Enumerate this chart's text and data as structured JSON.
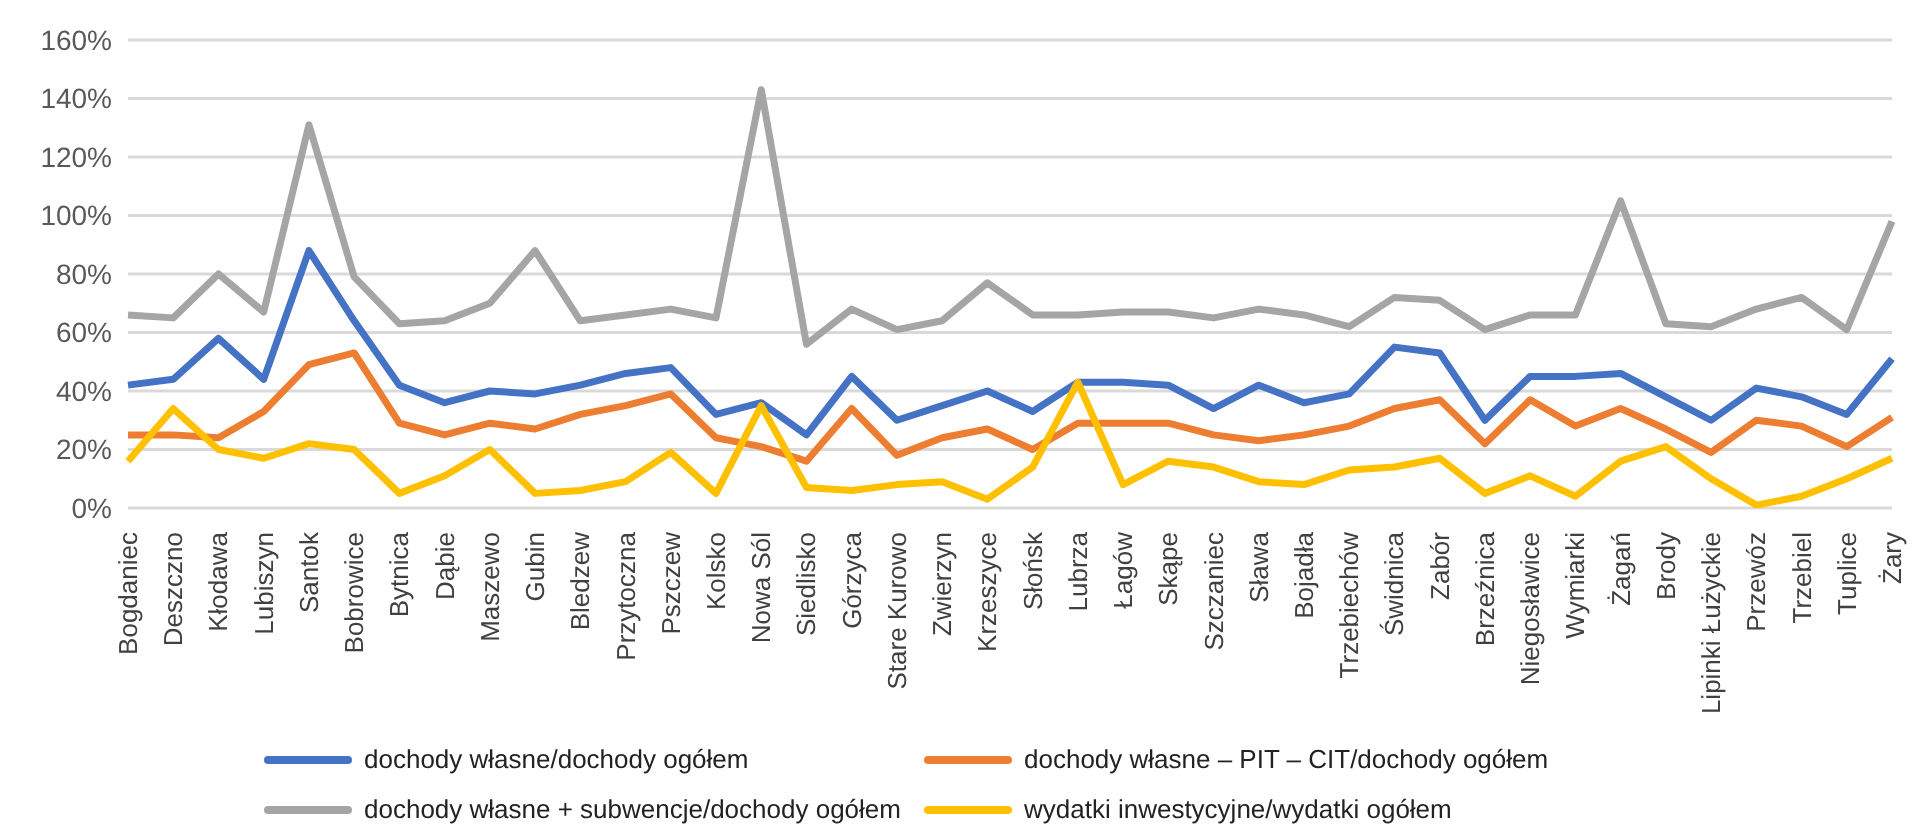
{
  "chart_data": {
    "type": "line",
    "categories": [
      "Bogdaniec",
      "Deszczno",
      "Kłodawa",
      "Lubiszyn",
      "Santok",
      "Bobrowice",
      "Bytnica",
      "Dąbie",
      "Maszewo",
      "Gubin",
      "Bledzew",
      "Przytoczna",
      "Pszczew",
      "Kolsko",
      "Nowa Sól",
      "Siedlisko",
      "Górzyca",
      "Stare Kurowo",
      "Zwierzyn",
      "Krzeszyce",
      "Słońsk",
      "Lubrza",
      "Łagów",
      "Skąpe",
      "Szczaniec",
      "Sława",
      "Bojadła",
      "Trzebiechów",
      "Świdnica",
      "Zabór",
      "Brzeźnica",
      "Niegosławice",
      "Wymiarki",
      "Żagań",
      "Brody",
      "Lipinki Łużyckie",
      "Przewóz",
      "Trzebiel",
      "Tuplice",
      "Żary"
    ],
    "series": [
      {
        "name": "dochody własne/dochody ogółem",
        "color": "#4472c4",
        "values": [
          42,
          44,
          58,
          44,
          88,
          64,
          42,
          36,
          40,
          39,
          42,
          46,
          48,
          32,
          36,
          25,
          45,
          30,
          35,
          40,
          33,
          43,
          43,
          42,
          34,
          42,
          36,
          39,
          55,
          53,
          30,
          45,
          45,
          46,
          38,
          30,
          41,
          38,
          32,
          51
        ]
      },
      {
        "name": "dochody własne – PIT – CIT/dochody ogółem",
        "color": "#ed7d31",
        "values": [
          25,
          25,
          24,
          33,
          49,
          53,
          29,
          25,
          29,
          27,
          32,
          35,
          39,
          24,
          21,
          16,
          34,
          18,
          24,
          27,
          20,
          29,
          29,
          29,
          25,
          23,
          25,
          28,
          34,
          37,
          22,
          37,
          28,
          34,
          27,
          19,
          30,
          28,
          21,
          31
        ]
      },
      {
        "name": "dochody własne + subwencje/dochody ogółem",
        "color": "#a5a5a5",
        "values": [
          66,
          65,
          80,
          67,
          131,
          79,
          63,
          64,
          70,
          88,
          64,
          66,
          68,
          65,
          143,
          56,
          68,
          61,
          64,
          77,
          66,
          66,
          67,
          67,
          65,
          68,
          66,
          62,
          72,
          71,
          61,
          66,
          66,
          105,
          63,
          62,
          68,
          72,
          61,
          98
        ]
      },
      {
        "name": "wydatki inwestycyjne/wydatki ogółem",
        "color": "#ffc000",
        "values": [
          16,
          34,
          20,
          17,
          22,
          20,
          5,
          11,
          20,
          5,
          6,
          9,
          19,
          5,
          35,
          7,
          6,
          8,
          9,
          3,
          14,
          43,
          8,
          16,
          14,
          9,
          8,
          13,
          14,
          17,
          5,
          11,
          4,
          16,
          21,
          10,
          1,
          4,
          10,
          17
        ]
      }
    ],
    "ylim": [
      0,
      160
    ],
    "yticks": [
      {
        "value": 0,
        "label": "0%"
      },
      {
        "value": 20,
        "label": "20%"
      },
      {
        "value": 40,
        "label": "40%"
      },
      {
        "value": 60,
        "label": "60%"
      },
      {
        "value": 80,
        "label": "80%"
      },
      {
        "value": 100,
        "label": "100%"
      },
      {
        "value": 120,
        "label": "120%"
      },
      {
        "value": 140,
        "label": "140%"
      },
      {
        "value": 160,
        "label": "160%"
      }
    ],
    "grid": "y",
    "legend": "bottom",
    "marker": "none",
    "line_style": "solid"
  }
}
